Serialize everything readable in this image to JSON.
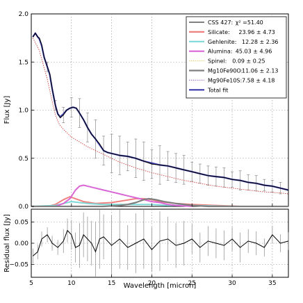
{
  "chart_data": [
    {
      "panel": "main",
      "type": "line",
      "xlabel": "",
      "ylabel": "Flux [Jy]",
      "xlim": [
        5,
        37
      ],
      "ylim": [
        0,
        2.0
      ],
      "x_ticks": [
        5,
        10,
        15,
        20,
        25,
        30,
        35
      ],
      "y_ticks": [
        0.0,
        0.5,
        1.0,
        1.5,
        2.0
      ],
      "y_tick_labels": [
        "0.0",
        "0.5",
        "1.0",
        "1.5",
        "2.0"
      ],
      "grid": true,
      "legend_position": "top-right",
      "legend": [
        {
          "label": "CSS 427:",
          "stat": "χ² =51.40",
          "color": "#000000",
          "style": "solid"
        },
        {
          "label": "Silicate:",
          "stat": "23.96 ± 4.73",
          "color": "#f08080",
          "style": "solid"
        },
        {
          "label": "Gehlenite:",
          "stat": "12.28 ± 2.36",
          "color": "#7fd8d8",
          "style": "solid"
        },
        {
          "label": "Alumina:",
          "stat": "45.03 ± 4.96",
          "color": "#d966d6",
          "style": "solid"
        },
        {
          "label": "Spinel:",
          "stat": "0.09 ± 0.25",
          "color": "#e6d27a",
          "style": "dotted"
        },
        {
          "label": "Mg10Fe90O:",
          "stat": "11.06 ± 2.13",
          "color": "#7f7f7f",
          "style": "solid"
        },
        {
          "label": "Mg90Fe10S:",
          "stat": "7.58 ± 4.18",
          "color": "#a080d0",
          "style": "dotted"
        },
        {
          "label": "Total fit",
          "stat": "",
          "color": "#3a3aa8",
          "style": "solid"
        }
      ],
      "series": [
        {
          "name": "CSS 427",
          "color": "#000000",
          "x": [
            5.2,
            5.5,
            5.8,
            6.0,
            6.3,
            6.6,
            7.0,
            7.3,
            7.6,
            8.0,
            8.3,
            8.6,
            9.0,
            9.4,
            9.8,
            10.2,
            10.6,
            11.0,
            11.5,
            12.0,
            12.5,
            13.0,
            13.5,
            14.0,
            14.5,
            15.0,
            15.5,
            16.0,
            17.0,
            18.0,
            19.0,
            20.0,
            21.0,
            22.0,
            23.0,
            24.0,
            25.0,
            26.0,
            27.0,
            28.0,
            29.0,
            30.0,
            31.0,
            32.0,
            33.0,
            34.0,
            35.0,
            36.0,
            37.0
          ],
          "y": [
            1.76,
            1.8,
            1.76,
            1.75,
            1.68,
            1.55,
            1.45,
            1.38,
            1.22,
            1.05,
            0.96,
            0.92,
            0.95,
            1.0,
            1.02,
            1.03,
            1.02,
            0.97,
            0.9,
            0.82,
            0.75,
            0.7,
            0.65,
            0.58,
            0.56,
            0.55,
            0.54,
            0.53,
            0.52,
            0.5,
            0.47,
            0.44,
            0.43,
            0.42,
            0.4,
            0.38,
            0.36,
            0.34,
            0.32,
            0.31,
            0.3,
            0.28,
            0.27,
            0.25,
            0.24,
            0.22,
            0.21,
            0.19,
            0.17
          ]
        },
        {
          "name": "Total fit",
          "color": "#3a3aa8",
          "x": [
            5.2,
            5.5,
            5.8,
            6.0,
            6.3,
            6.6,
            7.0,
            7.3,
            7.6,
            8.0,
            8.3,
            8.6,
            9.0,
            9.4,
            9.8,
            10.2,
            10.6,
            11.0,
            11.5,
            12.0,
            12.5,
            13.0,
            13.5,
            14.0,
            14.5,
            15.0,
            15.5,
            16.0,
            17.0,
            18.0,
            19.0,
            20.0,
            21.0,
            22.0,
            23.0,
            24.0,
            25.0,
            26.0,
            27.0,
            28.0,
            29.0,
            30.0,
            31.0,
            32.0,
            33.0,
            34.0,
            35.0,
            36.0,
            37.0
          ],
          "y": [
            1.76,
            1.8,
            1.76,
            1.74,
            1.67,
            1.55,
            1.45,
            1.37,
            1.22,
            1.05,
            0.96,
            0.93,
            0.96,
            1.0,
            1.02,
            1.03,
            1.02,
            0.97,
            0.9,
            0.82,
            0.75,
            0.7,
            0.64,
            0.58,
            0.56,
            0.55,
            0.54,
            0.53,
            0.52,
            0.5,
            0.47,
            0.45,
            0.43,
            0.42,
            0.4,
            0.38,
            0.36,
            0.34,
            0.32,
            0.31,
            0.3,
            0.28,
            0.27,
            0.25,
            0.24,
            0.22,
            0.21,
            0.19,
            0.17
          ]
        },
        {
          "name": "Silicate",
          "color": "#f08080",
          "x": [
            5,
            7,
            8,
            9,
            9.8,
            10.5,
            11.5,
            13,
            15,
            16.5,
            18,
            19,
            20,
            21,
            23,
            25,
            28,
            31,
            34,
            37
          ],
          "y": [
            0,
            0.0,
            0.02,
            0.07,
            0.1,
            0.08,
            0.05,
            0.03,
            0.04,
            0.06,
            0.08,
            0.08,
            0.07,
            0.05,
            0.03,
            0.02,
            0.01,
            0.0,
            0.0,
            0.0
          ]
        },
        {
          "name": "Gehlenite",
          "color": "#7fd8d8",
          "x": [
            5,
            8,
            9,
            10,
            11,
            12,
            14,
            16,
            18,
            20,
            22,
            25,
            30,
            37
          ],
          "y": [
            0,
            0.01,
            0.03,
            0.05,
            0.04,
            0.03,
            0.02,
            0.02,
            0.02,
            0.02,
            0.01,
            0.01,
            0.0,
            0.0
          ]
        },
        {
          "name": "Alumina",
          "color": "#d966d6",
          "x": [
            5,
            8,
            9,
            9.8,
            10.5,
            11.0,
            11.5,
            12.5,
            14,
            15,
            16,
            17,
            18,
            19,
            20,
            21,
            22,
            23,
            24,
            25
          ],
          "y": [
            0,
            0.0,
            0.03,
            0.08,
            0.17,
            0.21,
            0.22,
            0.2,
            0.17,
            0.15,
            0.13,
            0.11,
            0.09,
            0.07,
            0.05,
            0.04,
            0.02,
            0.01,
            0.005,
            0.0
          ]
        },
        {
          "name": "Mg10Fe90O",
          "color": "#7f7f7f",
          "x": [
            5,
            14,
            16,
            17,
            18,
            19,
            19.6,
            20.5,
            21.5,
            23,
            25,
            27,
            30,
            37
          ],
          "y": [
            0,
            0.0,
            0.01,
            0.02,
            0.04,
            0.07,
            0.08,
            0.07,
            0.05,
            0.03,
            0.01,
            0.0,
            0.0,
            0.0
          ]
        },
        {
          "name": "Mg90Fe10S",
          "color": "#d04040",
          "x": [
            5.2,
            6,
            7,
            7.5,
            8,
            8.5,
            9,
            10,
            11,
            12,
            13,
            14,
            15,
            16,
            18,
            20,
            22,
            24,
            26,
            28,
            30,
            32,
            34,
            36,
            37
          ],
          "y": [
            1.75,
            1.62,
            1.32,
            1.13,
            0.95,
            0.85,
            0.8,
            0.72,
            0.67,
            0.62,
            0.58,
            0.54,
            0.5,
            0.46,
            0.4,
            0.35,
            0.31,
            0.27,
            0.24,
            0.21,
            0.19,
            0.17,
            0.15,
            0.14,
            0.13
          ]
        }
      ],
      "errorbars": {
        "x": [
          7,
          8,
          9,
          10,
          11,
          12,
          13,
          14,
          15,
          16,
          17,
          18,
          19,
          20,
          21,
          22,
          23,
          24,
          25,
          26,
          27,
          28,
          29,
          30,
          31,
          32,
          33,
          34,
          35,
          36
        ],
        "y": [
          1.45,
          1.05,
          0.95,
          1.03,
          0.97,
          0.82,
          0.7,
          0.58,
          0.55,
          0.53,
          0.52,
          0.5,
          0.47,
          0.44,
          0.43,
          0.42,
          0.4,
          0.38,
          0.36,
          0.34,
          0.32,
          0.31,
          0.3,
          0.28,
          0.27,
          0.25,
          0.24,
          0.22,
          0.21,
          0.19
        ],
        "err": [
          0.05,
          0.05,
          0.08,
          0.1,
          0.15,
          0.15,
          0.2,
          0.15,
          0.2,
          0.2,
          0.15,
          0.2,
          0.2,
          0.15,
          0.2,
          0.15,
          0.15,
          0.15,
          0.1,
          0.1,
          0.1,
          0.1,
          0.1,
          0.08,
          0.1,
          0.08,
          0.08,
          0.06,
          0.06,
          0.06
        ]
      }
    },
    {
      "panel": "residual",
      "type": "line",
      "xlabel": "Wavelength [micron]",
      "ylabel": "Residual flux [Jy]",
      "xlim": [
        5,
        37
      ],
      "ylim": [
        -0.08,
        0.08
      ],
      "x_ticks": [
        5,
        10,
        15,
        20,
        25,
        30,
        35
      ],
      "y_ticks": [
        -0.05,
        0.0,
        0.05
      ],
      "y_tick_labels": [
        "−0.05",
        "0.00",
        "0.05"
      ],
      "grid": true,
      "series": [
        {
          "name": "Residual",
          "color": "#000000",
          "x": [
            5.2,
            5.8,
            6.3,
            7.0,
            7.6,
            8.3,
            9.0,
            9.5,
            10.0,
            10.5,
            11.0,
            11.5,
            12.0,
            12.5,
            13.0,
            13.5,
            14.0,
            15.0,
            16.0,
            17.0,
            18.0,
            19.0,
            20.0,
            21.0,
            22.0,
            23.0,
            24.0,
            25.0,
            26.0,
            27.0,
            28.0,
            29.0,
            30.0,
            31.0,
            32.0,
            33.0,
            34.0,
            35.0,
            36.0,
            37.0
          ],
          "y": [
            -0.03,
            -0.02,
            0.01,
            0.02,
            0.0,
            -0.01,
            0.005,
            0.03,
            0.02,
            -0.01,
            -0.005,
            0.02,
            0.01,
            0.0,
            -0.02,
            0.01,
            0.015,
            -0.005,
            0.01,
            -0.01,
            0.0,
            0.01,
            -0.015,
            0.005,
            0.01,
            -0.005,
            0.0,
            0.01,
            -0.01,
            0.005,
            0.0,
            -0.005,
            0.01,
            -0.01,
            0.005,
            0.0,
            -0.01,
            0.02,
            0.0,
            0.005
          ]
        }
      ]
    }
  ]
}
